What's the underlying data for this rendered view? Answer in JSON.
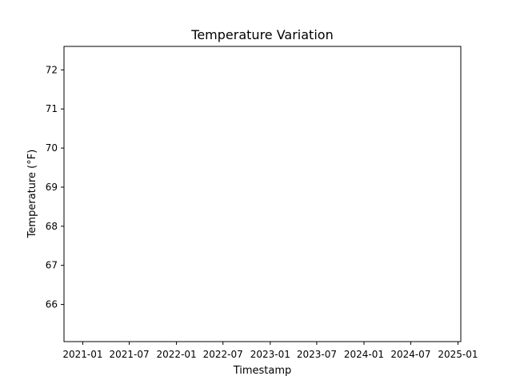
{
  "chart_data": {
    "type": "line",
    "title": "Temperature Variation",
    "xlabel": "Timestamp",
    "ylabel": "Temperature (°F)",
    "x_ticks": [
      "2021-01",
      "2021-07",
      "2022-01",
      "2022-07",
      "2023-01",
      "2023-07",
      "2024-01",
      "2024-07",
      "2025-01"
    ],
    "xlim": [
      "2020-10-20",
      "2025-01-12"
    ],
    "y_ticks": [
      66,
      67,
      68,
      69,
      70,
      71,
      72
    ],
    "ylim": [
      65.05,
      72.6
    ],
    "series": [],
    "grid": false,
    "legend": "none"
  }
}
